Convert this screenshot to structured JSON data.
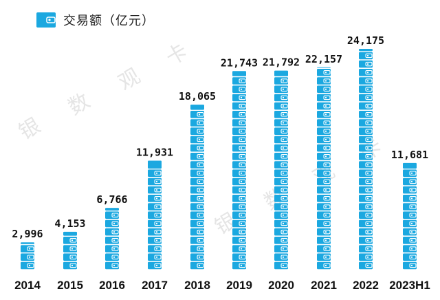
{
  "colors": {
    "bar": "#1ba8e0",
    "wallet_line": "#ffffff",
    "text": "#111111"
  },
  "legend": {
    "icon": "wallet-icon",
    "label": "交易额（亿元）"
  },
  "watermark": {
    "chars": [
      "银",
      "数",
      "观",
      "卡"
    ]
  },
  "chart_data": {
    "type": "bar",
    "categories": [
      "2014",
      "2015",
      "2016",
      "2017",
      "2018",
      "2019",
      "2020",
      "2021",
      "2022",
      "2023H1"
    ],
    "values": [
      2996,
      4153,
      6766,
      11931,
      18065,
      21743,
      21792,
      22157,
      24175,
      11681
    ],
    "value_labels": [
      "2,996",
      "4,153",
      "6,766",
      "11,931",
      "18,065",
      "21,743",
      "21,792",
      "22,157",
      "24,175",
      "11,681"
    ],
    "ylabel": "交易额（亿元）",
    "ylim": [
      0,
      25000
    ],
    "grid": false,
    "legend_position": "top-left"
  }
}
